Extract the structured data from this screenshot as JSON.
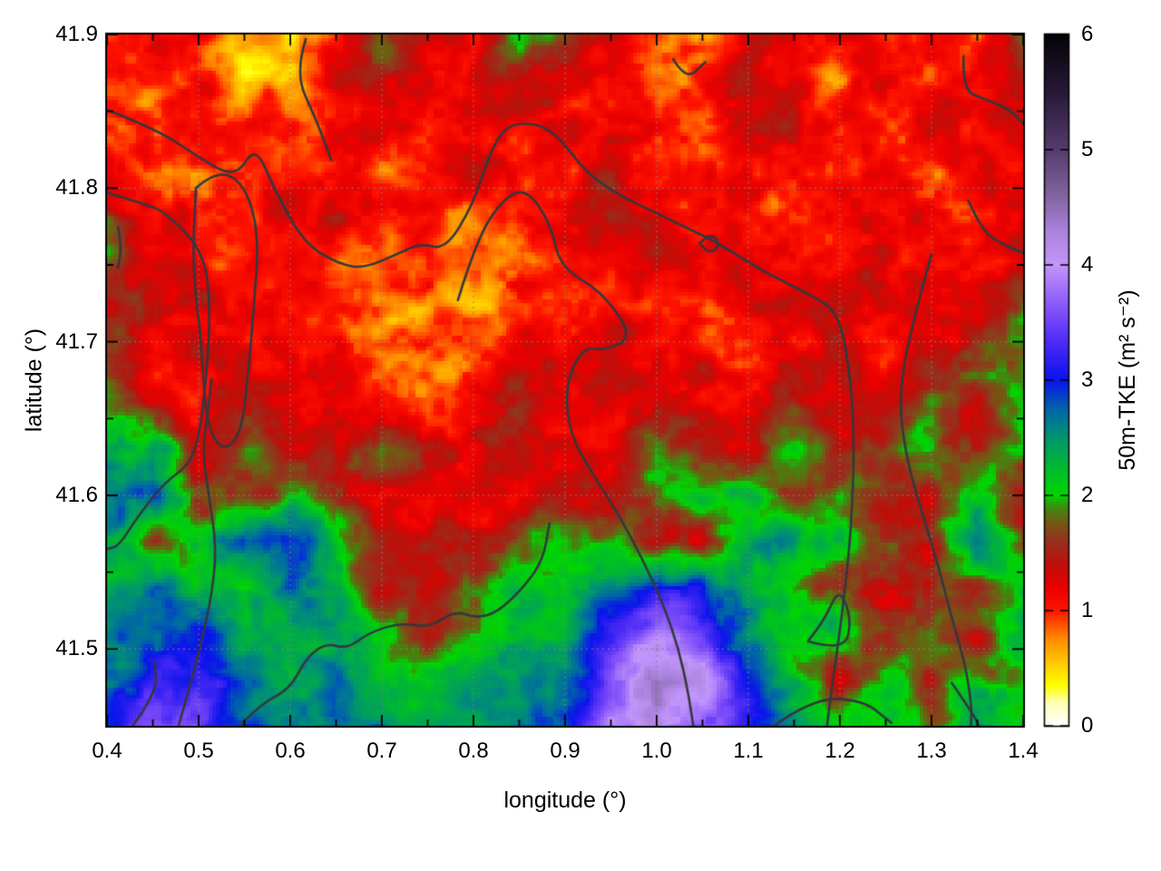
{
  "axes": {
    "x": {
      "label": "longitude (°)",
      "min": 0.4,
      "max": 1.4,
      "major_ticks": [
        0.4,
        0.5,
        0.6,
        0.7,
        0.8,
        0.9,
        1.0,
        1.1,
        1.2,
        1.3,
        1.4
      ],
      "major_tick_labels": [
        "0.4",
        "0.5",
        "0.6",
        "0.7",
        "0.8",
        "0.9",
        "1.0",
        "1.1",
        "1.2",
        "1.3",
        "1.4"
      ],
      "minor_ticks": [
        0.45,
        0.55,
        0.65,
        0.75,
        0.85,
        0.95,
        1.05,
        1.15,
        1.25,
        1.35
      ]
    },
    "y": {
      "label": "latitude (°)",
      "min": 41.45,
      "max": 41.9,
      "major_ticks": [
        41.5,
        41.6,
        41.7,
        41.8,
        41.9
      ],
      "major_tick_labels": [
        "41.5",
        "41.6",
        "41.7",
        "41.8",
        "41.9"
      ],
      "minor_ticks": [
        41.55,
        41.65,
        41.75,
        41.85
      ]
    }
  },
  "colorbar": {
    "label": "50m-TKE (m² s⁻²)",
    "min": 0,
    "max": 6,
    "ticks": [
      0,
      1,
      2,
      3,
      4,
      5,
      6
    ],
    "tick_labels": [
      "0",
      "1",
      "2",
      "3",
      "4",
      "5",
      "6"
    ]
  },
  "style": {
    "background": "#ffffff",
    "frame_color": "#000000",
    "grid_color": "#808080",
    "contour_color": "#33383e"
  },
  "chart_data": {
    "type": "heatmap",
    "title": "",
    "xlabel": "longitude (°)",
    "ylabel": "latitude (°)",
    "value_label": "50m-TKE (m² s⁻²)",
    "xlim": [
      0.4,
      1.4
    ],
    "ylim": [
      41.45,
      41.9
    ],
    "vlim": [
      0,
      6
    ],
    "grid_on": true,
    "lon0": 0.4,
    "dlon": 0.05,
    "ncols": 21,
    "lat_top": 41.9,
    "dlat": 0.03,
    "nrows": 16,
    "values": [
      [
        1.0,
        1.2,
        1.1,
        0.7,
        0.3,
        1.1,
        1.7,
        1.3,
        1.2,
        2.0,
        1.8,
        1.2,
        1.0,
        0.8,
        1.2,
        1.3,
        1.2,
        1.1,
        1.2,
        1.0,
        1.8
      ],
      [
        1.1,
        0.9,
        1.2,
        0.5,
        0.6,
        1.2,
        1.4,
        1.2,
        1.3,
        1.5,
        1.2,
        1.1,
        0.8,
        1.0,
        1.3,
        1.1,
        0.8,
        1.2,
        1.1,
        1.2,
        1.4
      ],
      [
        0.9,
        1.1,
        1.3,
        1.1,
        0.9,
        1.2,
        1.4,
        1.1,
        1.0,
        1.2,
        1.3,
        1.2,
        1.1,
        0.9,
        1.2,
        1.4,
        1.2,
        1.0,
        1.2,
        1.1,
        1.3
      ],
      [
        1.2,
        0.9,
        0.8,
        1.1,
        1.2,
        1.0,
        0.9,
        1.2,
        1.3,
        0.9,
        1.1,
        1.4,
        1.1,
        1.0,
        1.2,
        1.1,
        0.9,
        1.2,
        0.9,
        1.2,
        1.2
      ],
      [
        1.6,
        1.2,
        1.0,
        0.9,
        1.2,
        1.3,
        1.1,
        0.9,
        0.8,
        1.1,
        1.2,
        1.3,
        1.2,
        1.1,
        0.9,
        1.2,
        1.3,
        1.1,
        1.2,
        1.0,
        1.3
      ],
      [
        1.8,
        1.1,
        1.2,
        1.1,
        1.2,
        1.0,
        0.8,
        0.9,
        0.8,
        0.9,
        1.1,
        1.0,
        1.2,
        1.3,
        1.2,
        1.0,
        1.2,
        1.3,
        1.1,
        1.2,
        1.2
      ],
      [
        1.7,
        1.4,
        1.2,
        1.2,
        1.0,
        1.1,
        0.9,
        0.8,
        0.7,
        0.9,
        1.0,
        1.2,
        1.1,
        0.9,
        1.2,
        1.2,
        1.4,
        1.2,
        1.0,
        1.3,
        1.9
      ],
      [
        1.8,
        1.2,
        1.3,
        1.2,
        1.2,
        1.1,
        0.9,
        0.8,
        0.9,
        1.2,
        1.2,
        1.3,
        1.2,
        1.2,
        1.0,
        1.3,
        1.2,
        1.1,
        1.3,
        1.8,
        2.0
      ],
      [
        1.9,
        1.3,
        1.2,
        1.4,
        1.2,
        1.3,
        1.2,
        1.0,
        1.2,
        1.4,
        1.2,
        1.2,
        1.3,
        1.2,
        1.2,
        1.4,
        1.2,
        1.3,
        1.9,
        1.4,
        2.0
      ],
      [
        2.2,
        2.5,
        1.3,
        1.9,
        1.4,
        1.2,
        1.8,
        1.3,
        1.2,
        1.3,
        1.4,
        1.2,
        1.9,
        1.4,
        1.2,
        1.9,
        1.3,
        1.8,
        2.0,
        1.4,
        2.1
      ],
      [
        2.8,
        2.9,
        1.6,
        1.4,
        2.0,
        1.4,
        1.2,
        1.3,
        1.2,
        1.2,
        1.4,
        1.3,
        1.9,
        2.1,
        2.3,
        1.4,
        2.0,
        1.4,
        1.3,
        2.0,
        1.5
      ],
      [
        2.4,
        1.6,
        2.0,
        2.9,
        3.0,
        2.2,
        1.5,
        1.4,
        1.3,
        1.9,
        2.1,
        2.0,
        1.4,
        1.3,
        2.4,
        2.6,
        2.2,
        1.5,
        1.5,
        2.7,
        1.6
      ],
      [
        2.4,
        2.8,
        2.2,
        2.1,
        2.8,
        2.2,
        1.5,
        1.4,
        1.9,
        2.1,
        2.2,
        2.6,
        3.0,
        2.8,
        2.4,
        2.0,
        1.5,
        1.4,
        1.5,
        1.5,
        2.2
      ],
      [
        2.5,
        2.9,
        3.1,
        2.4,
        2.2,
        2.4,
        2.0,
        1.5,
        2.0,
        2.2,
        2.4,
        3.2,
        3.9,
        3.5,
        2.6,
        2.2,
        2.4,
        1.5,
        2.0,
        1.4,
        2.1
      ],
      [
        2.7,
        3.2,
        3.3,
        2.6,
        2.3,
        2.5,
        2.1,
        2.0,
        2.2,
        2.4,
        2.7,
        3.7,
        4.5,
        4.1,
        3.0,
        2.2,
        1.5,
        2.1,
        1.4,
        2.2,
        1.9
      ],
      [
        2.9,
        3.4,
        3.3,
        2.9,
        2.6,
        2.8,
        2.6,
        2.4,
        2.6,
        2.5,
        2.9,
        3.8,
        4.3,
        3.7,
        3.2,
        2.6,
        2.0,
        2.2,
        1.9,
        2.4,
        2.0
      ]
    ],
    "colormap": [
      [
        0.0,
        "#ffffff"
      ],
      [
        0.2,
        "#ffffb4"
      ],
      [
        0.35,
        "#ffff00"
      ],
      [
        0.55,
        "#ffc800"
      ],
      [
        0.75,
        "#ff8c00"
      ],
      [
        0.9,
        "#ff4600"
      ],
      [
        1.0,
        "#ff1400"
      ],
      [
        1.2,
        "#eb0000"
      ],
      [
        1.4,
        "#be0f0a"
      ],
      [
        1.6,
        "#96301e"
      ],
      [
        1.75,
        "#785514"
      ],
      [
        1.9,
        "#3c8c0f"
      ],
      [
        2.0,
        "#00d700"
      ],
      [
        2.2,
        "#00be28"
      ],
      [
        2.5,
        "#00966e"
      ],
      [
        2.75,
        "#0064aa"
      ],
      [
        3.0,
        "#0a14eb"
      ],
      [
        3.3,
        "#4628f5"
      ],
      [
        3.6,
        "#8250fa"
      ],
      [
        4.0,
        "#c396fa"
      ],
      [
        4.3,
        "#aa82dc"
      ],
      [
        4.6,
        "#8264a0"
      ],
      [
        5.0,
        "#553c6e"
      ],
      [
        5.5,
        "#281937"
      ],
      [
        6.0,
        "#050308"
      ]
    ],
    "contours": [
      {
        "points": [
          [
            0.4,
            41.851
          ],
          [
            0.455,
            41.838
          ],
          [
            0.495,
            41.822
          ],
          [
            0.54,
            41.806
          ],
          [
            0.562,
            41.828
          ],
          [
            0.582,
            41.8
          ],
          [
            0.615,
            41.764
          ],
          [
            0.655,
            41.75
          ],
          [
            0.682,
            41.748
          ],
          [
            0.72,
            41.758
          ],
          [
            0.742,
            41.764
          ],
          [
            0.77,
            41.76
          ],
          [
            0.8,
            41.79
          ],
          [
            0.816,
            41.82
          ],
          [
            0.834,
            41.84
          ],
          [
            0.862,
            41.843
          ],
          [
            0.89,
            41.836
          ],
          [
            0.923,
            41.81
          ],
          [
            0.96,
            41.795
          ],
          [
            0.992,
            41.786
          ],
          [
            1.03,
            41.775
          ],
          [
            1.068,
            41.764
          ],
          [
            1.112,
            41.747
          ],
          [
            1.17,
            41.73
          ],
          [
            1.196,
            41.72
          ],
          [
            1.208,
            41.693
          ],
          [
            1.216,
            41.645
          ],
          [
            1.213,
            41.58
          ],
          [
            1.202,
            41.52
          ],
          [
            1.19,
            41.47
          ],
          [
            1.186,
            41.45
          ]
        ]
      },
      {
        "points": [
          [
            0.4,
            41.797
          ],
          [
            0.44,
            41.79
          ],
          [
            0.465,
            41.784
          ],
          [
            0.508,
            41.757
          ],
          [
            0.513,
            41.712
          ],
          [
            0.506,
            41.663
          ],
          [
            0.5,
            41.638
          ],
          [
            0.49,
            41.62
          ],
          [
            0.462,
            41.608
          ],
          [
            0.432,
            41.585
          ],
          [
            0.413,
            41.567
          ],
          [
            0.4,
            41.565
          ]
        ]
      },
      {
        "points": [
          [
            0.497,
            41.8
          ],
          [
            0.52,
            41.812
          ],
          [
            0.55,
            41.803
          ],
          [
            0.566,
            41.77
          ],
          [
            0.56,
            41.72
          ],
          [
            0.553,
            41.672
          ],
          [
            0.546,
            41.64
          ],
          [
            0.527,
            41.628
          ],
          [
            0.508,
            41.646
          ],
          [
            0.503,
            41.7
          ],
          [
            0.493,
            41.75
          ],
          [
            0.497,
            41.8
          ]
        ]
      },
      {
        "points": [
          [
            0.783,
            41.727
          ],
          [
            0.803,
            41.766
          ],
          [
            0.832,
            41.793
          ],
          [
            0.858,
            41.8
          ],
          [
            0.884,
            41.777
          ],
          [
            0.895,
            41.748
          ],
          [
            0.94,
            41.733
          ],
          [
            0.975,
            41.703
          ],
          [
            0.942,
            41.694
          ],
          [
            0.92,
            41.697
          ],
          [
            0.9,
            41.672
          ],
          [
            0.905,
            41.64
          ],
          [
            0.93,
            41.614
          ],
          [
            0.958,
            41.588
          ],
          [
            0.985,
            41.558
          ],
          [
            1.008,
            41.528
          ],
          [
            1.024,
            41.5
          ],
          [
            1.034,
            41.473
          ],
          [
            1.04,
            41.45
          ]
        ]
      },
      {
        "points": [
          [
            1.047,
            41.764
          ],
          [
            1.058,
            41.771
          ],
          [
            1.07,
            41.764
          ],
          [
            1.058,
            41.757
          ],
          [
            1.047,
            41.764
          ]
        ]
      },
      {
        "points": [
          [
            0.617,
            41.897
          ],
          [
            0.605,
            41.875
          ],
          [
            0.628,
            41.845
          ],
          [
            0.645,
            41.818
          ]
        ]
      },
      {
        "points": [
          [
            1.018,
            41.884
          ],
          [
            1.032,
            41.87
          ],
          [
            1.053,
            41.882
          ]
        ]
      },
      {
        "points": [
          [
            1.335,
            41.886
          ],
          [
            1.334,
            41.864
          ],
          [
            1.357,
            41.858
          ],
          [
            1.384,
            41.852
          ],
          [
            1.4,
            41.842
          ]
        ]
      },
      {
        "points": [
          [
            1.34,
            41.792
          ],
          [
            1.355,
            41.772
          ],
          [
            1.379,
            41.763
          ],
          [
            1.4,
            41.758
          ]
        ]
      },
      {
        "points": [
          [
            1.3,
            41.757
          ],
          [
            1.278,
            41.71
          ],
          [
            1.264,
            41.665
          ],
          [
            1.272,
            41.625
          ],
          [
            1.29,
            41.588
          ],
          [
            1.308,
            41.553
          ],
          [
            1.322,
            41.52
          ],
          [
            1.337,
            41.49
          ],
          [
            1.344,
            41.462
          ],
          [
            1.343,
            41.45
          ]
        ]
      },
      {
        "points": [
          [
            0.545,
            41.45
          ],
          [
            0.567,
            41.464
          ],
          [
            0.6,
            41.474
          ],
          [
            0.617,
            41.494
          ],
          [
            0.639,
            41.504
          ],
          [
            0.662,
            41.5
          ],
          [
            0.687,
            41.511
          ],
          [
            0.72,
            41.517
          ],
          [
            0.752,
            41.514
          ],
          [
            0.78,
            41.525
          ],
          [
            0.803,
            41.52
          ],
          [
            0.827,
            41.524
          ],
          [
            0.856,
            41.541
          ],
          [
            0.876,
            41.558
          ],
          [
            0.883,
            41.582
          ]
        ]
      },
      {
        "points": [
          [
            0.478,
            41.45
          ],
          [
            0.496,
            41.487
          ],
          [
            0.513,
            41.53
          ],
          [
            0.52,
            41.565
          ],
          [
            0.511,
            41.6
          ],
          [
            0.504,
            41.63
          ],
          [
            0.511,
            41.657
          ],
          [
            0.514,
            41.676
          ]
        ]
      },
      {
        "points": [
          [
            1.165,
            41.505
          ],
          [
            1.205,
            41.498
          ],
          [
            1.213,
            41.52
          ],
          [
            1.199,
            41.54
          ],
          [
            1.184,
            41.52
          ],
          [
            1.165,
            41.505
          ]
        ]
      },
      {
        "points": [
          [
            1.128,
            41.45
          ],
          [
            1.17,
            41.468
          ],
          [
            1.225,
            41.467
          ],
          [
            1.256,
            41.452
          ]
        ]
      },
      {
        "points": [
          [
            1.322,
            41.478
          ],
          [
            1.345,
            41.458
          ],
          [
            1.352,
            41.45
          ]
        ]
      },
      {
        "points": [
          [
            0.428,
            41.45
          ],
          [
            0.455,
            41.472
          ],
          [
            0.452,
            41.492
          ]
        ]
      },
      {
        "points": [
          [
            0.412,
            41.775
          ],
          [
            0.416,
            41.762
          ],
          [
            0.412,
            41.748
          ]
        ]
      }
    ]
  }
}
